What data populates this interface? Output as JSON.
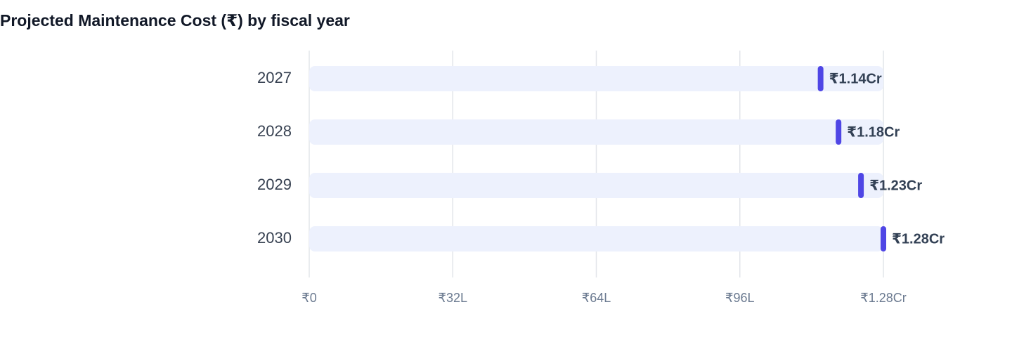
{
  "chart_data": {
    "type": "bar",
    "title": "Projected Maintenance Cost (₹) by fiscal year",
    "categories": [
      "2027",
      "2028",
      "2029",
      "2030"
    ],
    "values": [
      11400000,
      11800000,
      12300000,
      12800000
    ],
    "value_labels": [
      "₹1.14Cr",
      "₹1.18Cr",
      "₹1.23Cr",
      "₹1.28Cr"
    ],
    "color": "#4f46e5",
    "xlim": [
      0,
      12800000
    ],
    "xticks": [
      {
        "value": 0,
        "label": "₹0"
      },
      {
        "value": 3200000,
        "label": "₹32L"
      },
      {
        "value": 6400000,
        "label": "₹64L"
      },
      {
        "value": 9600000,
        "label": "₹96L"
      },
      {
        "value": 12800000,
        "label": "₹1.28Cr"
      }
    ],
    "grid": true
  }
}
